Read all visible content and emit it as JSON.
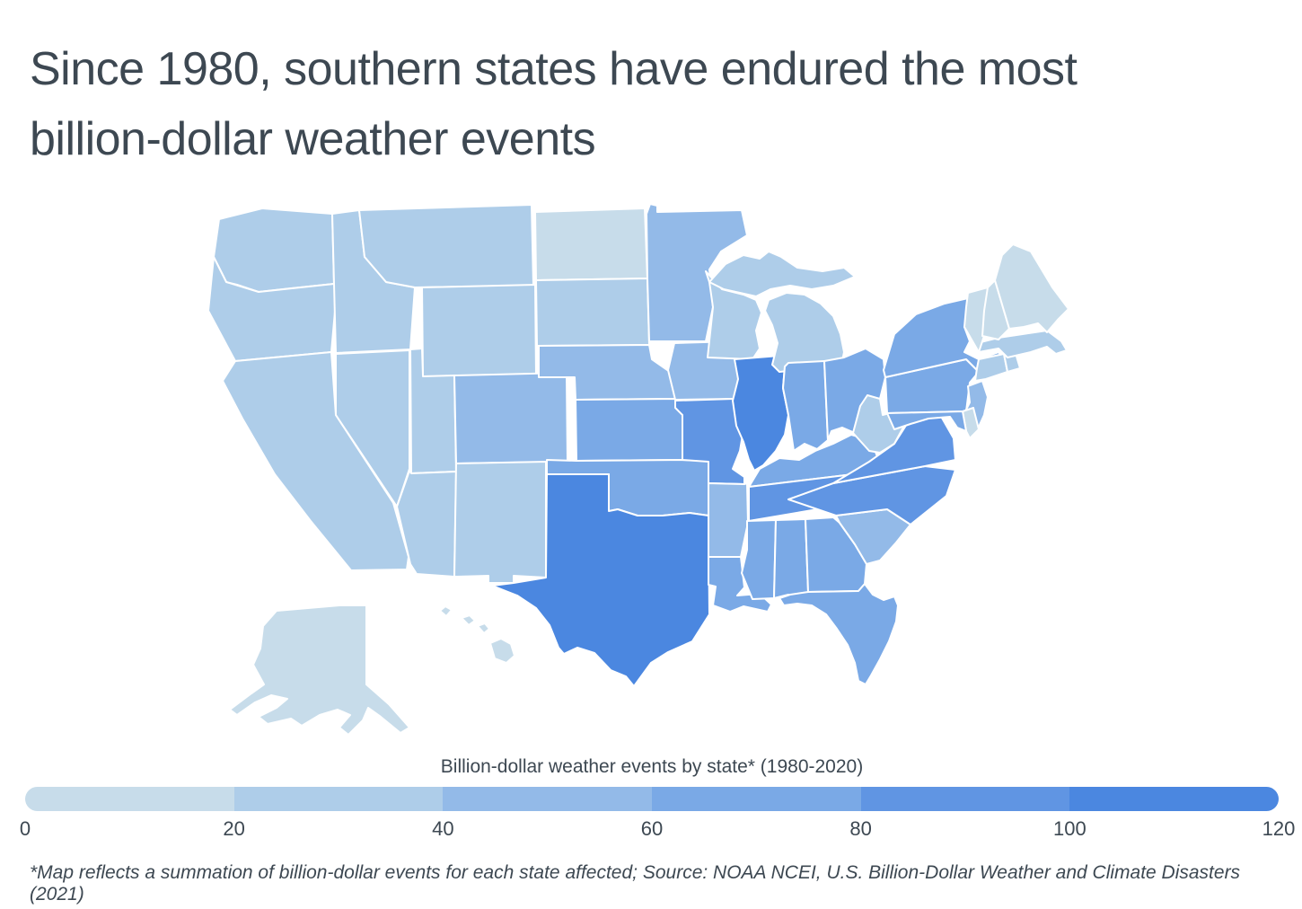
{
  "title": {
    "line1": "Since 1980, southern states have endured the most",
    "line2": "billion-dollar weather events"
  },
  "legend": {
    "title": "Billion-dollar weather events by state* (1980-2020)",
    "tick_labels": [
      "0",
      "20",
      "40",
      "60",
      "80",
      "100",
      "120"
    ],
    "bin_colors": [
      "#c7dcea",
      "#aecde9",
      "#93bae8",
      "#7aa9e6",
      "#6095e3",
      "#4b87e0"
    ],
    "bin_size": 20,
    "domain": [
      0,
      120
    ]
  },
  "footnote": "*Map reflects a summation of billion-dollar events for each state affected; Source: NOAA NCEI, U.S. Billion-Dollar Weather and Climate Disasters (2021)",
  "colors": {
    "text": "#3d4852",
    "background": "#ffffff",
    "state_border": "#ffffff"
  },
  "chart_data": {
    "type": "choropleth",
    "title": "Billion-dollar weather events by state* (1980-2020)",
    "unit": "billion-dollar weather events, summed 1980-2020",
    "range": [
      0,
      120
    ],
    "legend_position": "bottom",
    "states": [
      {
        "abbr": "AK",
        "name": "Alaska",
        "value": 14
      },
      {
        "abbr": "HI",
        "name": "Hawaii",
        "value": 12
      },
      {
        "abbr": "WA",
        "name": "Washington",
        "value": 34
      },
      {
        "abbr": "OR",
        "name": "Oregon",
        "value": 32
      },
      {
        "abbr": "CA",
        "name": "California",
        "value": 38
      },
      {
        "abbr": "NV",
        "name": "Nevada",
        "value": 29
      },
      {
        "abbr": "ID",
        "name": "Idaho",
        "value": 30
      },
      {
        "abbr": "MT",
        "name": "Montana",
        "value": 33
      },
      {
        "abbr": "WY",
        "name": "Wyoming",
        "value": 31
      },
      {
        "abbr": "UT",
        "name": "Utah",
        "value": 30
      },
      {
        "abbr": "CO",
        "name": "Colorado",
        "value": 48
      },
      {
        "abbr": "AZ",
        "name": "Arizona",
        "value": 36
      },
      {
        "abbr": "NM",
        "name": "New Mexico",
        "value": 38
      },
      {
        "abbr": "ND",
        "name": "North Dakota",
        "value": 19
      },
      {
        "abbr": "SD",
        "name": "South Dakota",
        "value": 38
      },
      {
        "abbr": "NE",
        "name": "Nebraska",
        "value": 55
      },
      {
        "abbr": "KS",
        "name": "Kansas",
        "value": 68
      },
      {
        "abbr": "OK",
        "name": "Oklahoma",
        "value": 75
      },
      {
        "abbr": "TX",
        "name": "Texas",
        "value": 120
      },
      {
        "abbr": "MN",
        "name": "Minnesota",
        "value": 42
      },
      {
        "abbr": "IA",
        "name": "Iowa",
        "value": 52
      },
      {
        "abbr": "MO",
        "name": "Missouri",
        "value": 88
      },
      {
        "abbr": "AR",
        "name": "Arkansas",
        "value": 54
      },
      {
        "abbr": "LA",
        "name": "Louisiana",
        "value": 63
      },
      {
        "abbr": "WI",
        "name": "Wisconsin",
        "value": 34
      },
      {
        "abbr": "IL",
        "name": "Illinois",
        "value": 105
      },
      {
        "abbr": "MI",
        "name": "Michigan",
        "value": 33
      },
      {
        "abbr": "IN",
        "name": "Indiana",
        "value": 67
      },
      {
        "abbr": "OH",
        "name": "Ohio",
        "value": 70
      },
      {
        "abbr": "KY",
        "name": "Kentucky",
        "value": 66
      },
      {
        "abbr": "TN",
        "name": "Tennessee",
        "value": 90
      },
      {
        "abbr": "MS",
        "name": "Mississippi",
        "value": 72
      },
      {
        "abbr": "AL",
        "name": "Alabama",
        "value": 74
      },
      {
        "abbr": "GA",
        "name": "Georgia",
        "value": 79
      },
      {
        "abbr": "FL",
        "name": "Florida",
        "value": 66
      },
      {
        "abbr": "SC",
        "name": "South Carolina",
        "value": 58
      },
      {
        "abbr": "NC",
        "name": "North Carolina",
        "value": 92
      },
      {
        "abbr": "VA",
        "name": "Virginia",
        "value": 85
      },
      {
        "abbr": "WV",
        "name": "West Virginia",
        "value": 24
      },
      {
        "abbr": "PA",
        "name": "Pennsylvania",
        "value": 64
      },
      {
        "abbr": "NY",
        "name": "New York",
        "value": 69
      },
      {
        "abbr": "NJ",
        "name": "New Jersey",
        "value": 45
      },
      {
        "abbr": "DE",
        "name": "Delaware",
        "value": 18
      },
      {
        "abbr": "MD",
        "name": "Maryland",
        "value": 65
      },
      {
        "abbr": "CT",
        "name": "Connecticut",
        "value": 35
      },
      {
        "abbr": "RI",
        "name": "Rhode Island",
        "value": 22
      },
      {
        "abbr": "MA",
        "name": "Massachusetts",
        "value": 36
      },
      {
        "abbr": "VT",
        "name": "Vermont",
        "value": 16
      },
      {
        "abbr": "NH",
        "name": "New Hampshire",
        "value": 13
      },
      {
        "abbr": "ME",
        "name": "Maine",
        "value": 18
      }
    ]
  }
}
